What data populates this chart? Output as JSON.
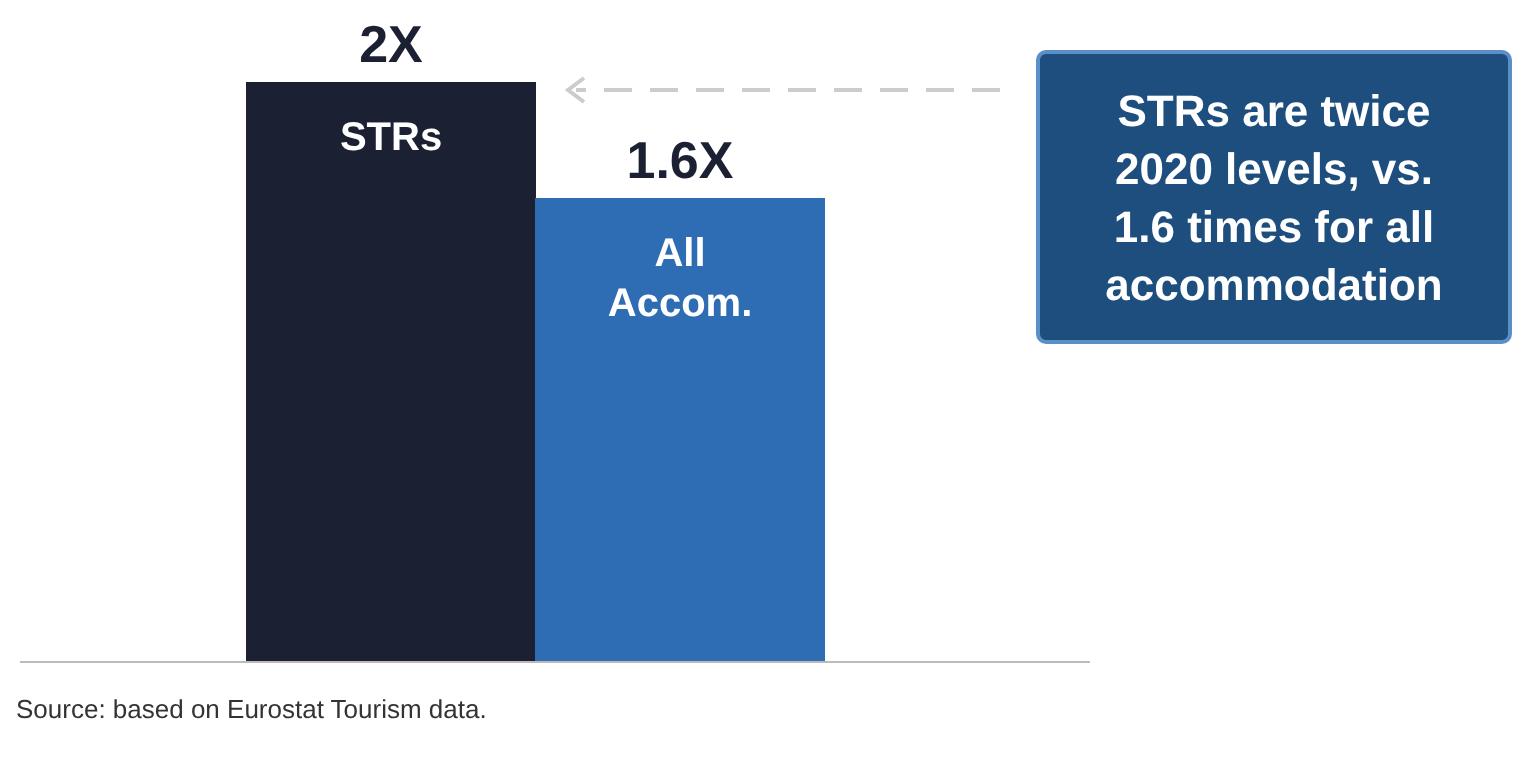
{
  "chart_data": {
    "type": "bar",
    "categories": [
      "STRs",
      "All Accom."
    ],
    "values": [
      2,
      1.6
    ],
    "colors": [
      "#1b2033",
      "#2e6db4"
    ],
    "value_labels": [
      "2X",
      "1.6X"
    ],
    "annotations": [
      "STRs are twice 2020 levels, vs. 1.6 times for all accommodation",
      "Source: based on Eurostat Tourism data."
    ]
  }
}
